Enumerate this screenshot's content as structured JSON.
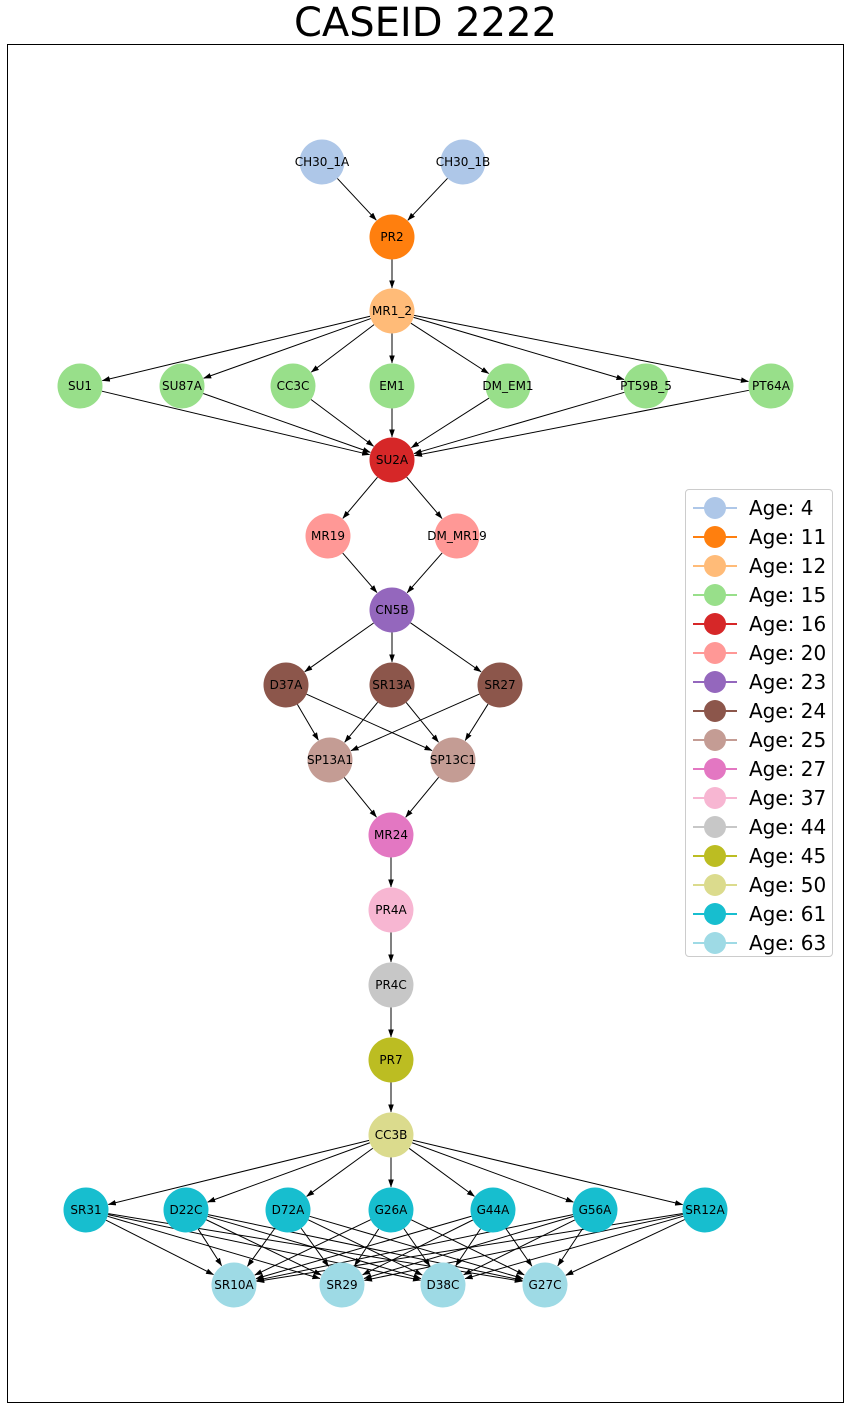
{
  "title": "CASEID 2222",
  "nodes": [
    {
      "id": "CH30_1A",
      "age": 4
    },
    {
      "id": "CH30_1B",
      "age": 4
    },
    {
      "id": "PR2",
      "age": 11
    },
    {
      "id": "MR1_2",
      "age": 12
    },
    {
      "id": "SU1",
      "age": 15
    },
    {
      "id": "SU87A",
      "age": 15
    },
    {
      "id": "CC3C",
      "age": 15
    },
    {
      "id": "EM1",
      "age": 15
    },
    {
      "id": "DM_EM1",
      "age": 15
    },
    {
      "id": "PT59B_5",
      "age": 15
    },
    {
      "id": "PT64A",
      "age": 15
    },
    {
      "id": "SU2A",
      "age": 16
    },
    {
      "id": "MR19",
      "age": 20
    },
    {
      "id": "DM_MR19",
      "age": 20
    },
    {
      "id": "CN5B",
      "age": 23
    },
    {
      "id": "D37A",
      "age": 24
    },
    {
      "id": "SR13A",
      "age": 24
    },
    {
      "id": "SR27",
      "age": 24
    },
    {
      "id": "SP13A1",
      "age": 25
    },
    {
      "id": "SP13C1",
      "age": 25
    },
    {
      "id": "MR24",
      "age": 27
    },
    {
      "id": "PR4A",
      "age": 37
    },
    {
      "id": "PR4C",
      "age": 44
    },
    {
      "id": "PR7",
      "age": 45
    },
    {
      "id": "CC3B",
      "age": 50
    },
    {
      "id": "SR31",
      "age": 61
    },
    {
      "id": "D22C",
      "age": 61
    },
    {
      "id": "D72A",
      "age": 61
    },
    {
      "id": "G26A",
      "age": 61
    },
    {
      "id": "G44A",
      "age": 61
    },
    {
      "id": "G56A",
      "age": 61
    },
    {
      "id": "SR12A",
      "age": 61
    },
    {
      "id": "SR10A",
      "age": 63
    },
    {
      "id": "SR29",
      "age": 63
    },
    {
      "id": "D38C",
      "age": 63
    },
    {
      "id": "G27C",
      "age": 63
    }
  ],
  "edges": [
    [
      "CH30_1A",
      "PR2"
    ],
    [
      "CH30_1B",
      "PR2"
    ],
    [
      "PR2",
      "MR1_2"
    ],
    [
      "MR1_2",
      "SU1"
    ],
    [
      "MR1_2",
      "SU87A"
    ],
    [
      "MR1_2",
      "CC3C"
    ],
    [
      "MR1_2",
      "EM1"
    ],
    [
      "MR1_2",
      "DM_EM1"
    ],
    [
      "MR1_2",
      "PT59B_5"
    ],
    [
      "MR1_2",
      "PT64A"
    ],
    [
      "SU1",
      "SU2A"
    ],
    [
      "SU87A",
      "SU2A"
    ],
    [
      "CC3C",
      "SU2A"
    ],
    [
      "EM1",
      "SU2A"
    ],
    [
      "DM_EM1",
      "SU2A"
    ],
    [
      "PT59B_5",
      "SU2A"
    ],
    [
      "PT64A",
      "SU2A"
    ],
    [
      "SU2A",
      "MR19"
    ],
    [
      "SU2A",
      "DM_MR19"
    ],
    [
      "MR19",
      "CN5B"
    ],
    [
      "DM_MR19",
      "CN5B"
    ],
    [
      "CN5B",
      "D37A"
    ],
    [
      "CN5B",
      "SR13A"
    ],
    [
      "CN5B",
      "SR27"
    ],
    [
      "D37A",
      "SP13A1"
    ],
    [
      "D37A",
      "SP13C1"
    ],
    [
      "SR13A",
      "SP13A1"
    ],
    [
      "SR13A",
      "SP13C1"
    ],
    [
      "SR27",
      "SP13A1"
    ],
    [
      "SR27",
      "SP13C1"
    ],
    [
      "SP13A1",
      "MR24"
    ],
    [
      "SP13C1",
      "MR24"
    ],
    [
      "MR24",
      "PR4A"
    ],
    [
      "PR4A",
      "PR4C"
    ],
    [
      "PR4C",
      "PR7"
    ],
    [
      "PR7",
      "CC3B"
    ],
    [
      "CC3B",
      "SR31"
    ],
    [
      "CC3B",
      "D22C"
    ],
    [
      "CC3B",
      "D72A"
    ],
    [
      "CC3B",
      "G26A"
    ],
    [
      "CC3B",
      "G44A"
    ],
    [
      "CC3B",
      "G56A"
    ],
    [
      "CC3B",
      "SR12A"
    ],
    [
      "SR31",
      "SR10A"
    ],
    [
      "SR31",
      "SR29"
    ],
    [
      "SR31",
      "D38C"
    ],
    [
      "SR31",
      "G27C"
    ],
    [
      "D22C",
      "SR10A"
    ],
    [
      "D22C",
      "SR29"
    ],
    [
      "D22C",
      "D38C"
    ],
    [
      "D22C",
      "G27C"
    ],
    [
      "D72A",
      "SR10A"
    ],
    [
      "D72A",
      "SR29"
    ],
    [
      "D72A",
      "D38C"
    ],
    [
      "D72A",
      "G27C"
    ],
    [
      "G26A",
      "SR10A"
    ],
    [
      "G26A",
      "SR29"
    ],
    [
      "G26A",
      "D38C"
    ],
    [
      "G26A",
      "G27C"
    ],
    [
      "G44A",
      "SR10A"
    ],
    [
      "G44A",
      "SR29"
    ],
    [
      "G44A",
      "D38C"
    ],
    [
      "G44A",
      "G27C"
    ],
    [
      "G56A",
      "SR10A"
    ],
    [
      "G56A",
      "SR29"
    ],
    [
      "G56A",
      "D38C"
    ],
    [
      "G56A",
      "G27C"
    ],
    [
      "SR12A",
      "SR10A"
    ],
    [
      "SR12A",
      "SR29"
    ],
    [
      "SR12A",
      "D38C"
    ],
    [
      "SR12A",
      "G27C"
    ]
  ],
  "legend": [
    {
      "label": "Age: 4",
      "color": "#aec7e8"
    },
    {
      "label": "Age: 11",
      "color": "#ff7f0e"
    },
    {
      "label": "Age: 12",
      "color": "#ffbb78"
    },
    {
      "label": "Age: 15",
      "color": "#98df8a"
    },
    {
      "label": "Age: 16",
      "color": "#d62728"
    },
    {
      "label": "Age: 20",
      "color": "#ff9896"
    },
    {
      "label": "Age: 23",
      "color": "#9467bd"
    },
    {
      "label": "Age: 24",
      "color": "#8c564b"
    },
    {
      "label": "Age: 25",
      "color": "#c49c94"
    },
    {
      "label": "Age: 27",
      "color": "#e377c2"
    },
    {
      "label": "Age: 37",
      "color": "#f7b6d2"
    },
    {
      "label": "Age: 44",
      "color": "#c7c7c7"
    },
    {
      "label": "Age: 45",
      "color": "#bcbd22"
    },
    {
      "label": "Age: 50",
      "color": "#dbdb8d"
    },
    {
      "label": "Age: 61",
      "color": "#17becf"
    },
    {
      "label": "Age: 63",
      "color": "#9edae5"
    }
  ]
}
